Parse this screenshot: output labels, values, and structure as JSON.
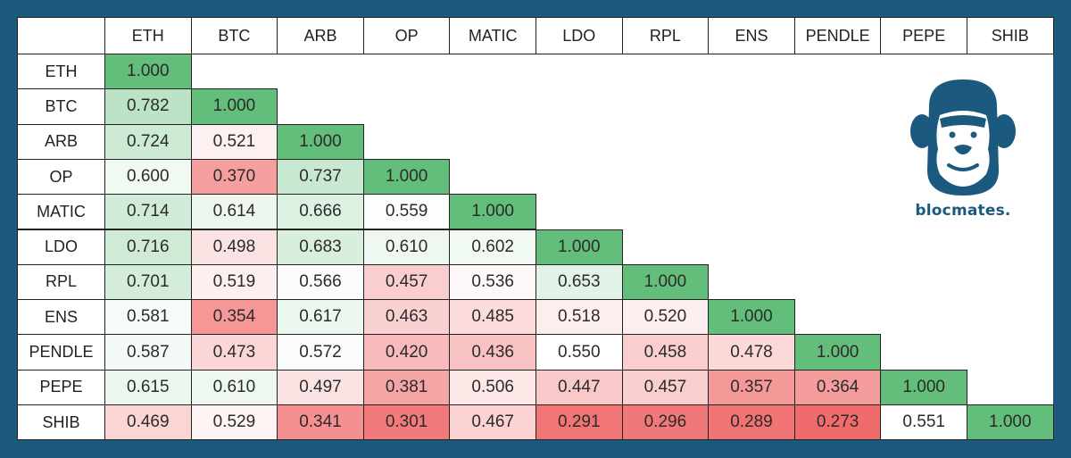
{
  "chart_data": {
    "type": "heatmap",
    "title": "",
    "labels": [
      "ETH",
      "BTC",
      "ARB",
      "OP",
      "MATIC",
      "LDO",
      "RPL",
      "ENS",
      "PENDLE",
      "PEPE",
      "SHIB"
    ],
    "matrix": [
      [
        "1.000"
      ],
      [
        "0.782",
        "1.000"
      ],
      [
        "0.724",
        "0.521",
        "1.000"
      ],
      [
        "0.600",
        "0.370",
        "0.737",
        "1.000"
      ],
      [
        "0.714",
        "0.614",
        "0.666",
        "0.559",
        "1.000"
      ],
      [
        "0.716",
        "0.498",
        "0.683",
        "0.610",
        "0.602",
        "1.000"
      ],
      [
        "0.701",
        "0.519",
        "0.566",
        "0.457",
        "0.536",
        "0.653",
        "1.000"
      ],
      [
        "0.581",
        "0.354",
        "0.617",
        "0.463",
        "0.485",
        "0.518",
        "0.520",
        "1.000"
      ],
      [
        "0.587",
        "0.473",
        "0.572",
        "0.420",
        "0.436",
        "0.550",
        "0.458",
        "0.478",
        "1.000"
      ],
      [
        "0.615",
        "0.610",
        "0.497",
        "0.381",
        "0.506",
        "0.447",
        "0.457",
        "0.357",
        "0.364",
        "1.000"
      ],
      [
        "0.469",
        "0.529",
        "0.341",
        "0.301",
        "0.467",
        "0.291",
        "0.296",
        "0.289",
        "0.273",
        "0.551",
        "1.000"
      ]
    ],
    "color_scale": {
      "low": 0.27,
      "mid": 0.55,
      "high": 1.0,
      "low_color": "#f06a6a",
      "mid_color": "#ffffff",
      "high_color": "#63be7b"
    }
  },
  "brand": {
    "name": "blocmates.",
    "color": "#1b5a7e",
    "logo_icon": "gorilla-icon"
  }
}
